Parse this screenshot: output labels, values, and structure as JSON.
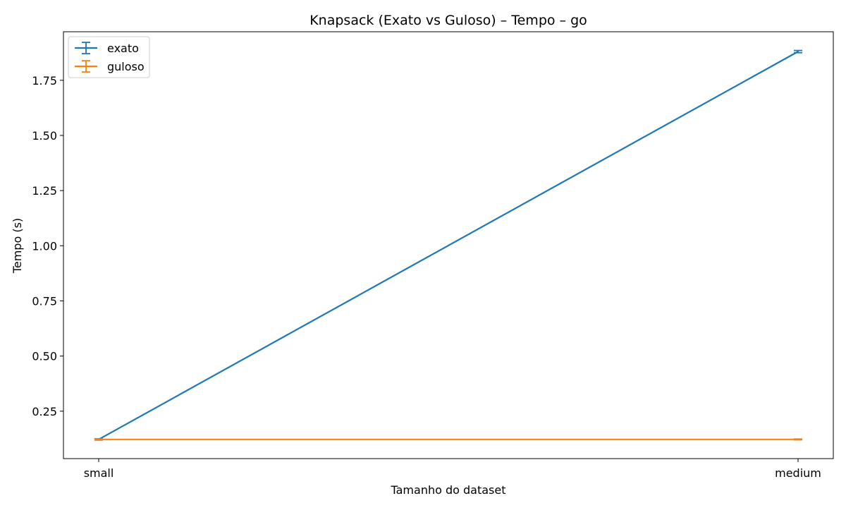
{
  "chart_data": {
    "type": "line",
    "title": "Knapsack (Exato vs Guloso) – Tempo – go",
    "xlabel": "Tamanho do dataset",
    "ylabel": "Tempo (s)",
    "categories": [
      "small",
      "medium"
    ],
    "ylim": [
      0.035,
      1.97
    ],
    "yticks": [
      "0.25",
      "0.50",
      "0.75",
      "1.00",
      "1.25",
      "1.50",
      "1.75"
    ],
    "grid": false,
    "legend_position": "top-left",
    "series": [
      {
        "name": "exato",
        "color": "#1f77b4",
        "values": [
          0.122,
          1.88
        ],
        "errors": [
          0.003,
          0.005
        ]
      },
      {
        "name": "guloso",
        "color": "#ff7f0e",
        "values": [
          0.122,
          0.122
        ],
        "errors": [
          0.002,
          0.002
        ]
      }
    ]
  }
}
